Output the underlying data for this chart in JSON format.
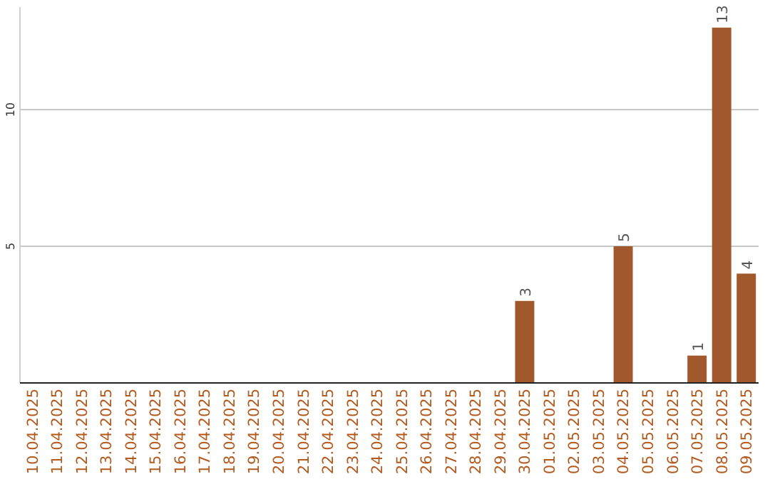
{
  "chart_data": {
    "type": "bar",
    "categories": [
      "10.04.2025",
      "11.04.2025",
      "12.04.2025",
      "13.04.2025",
      "14.04.2025",
      "15.04.2025",
      "16.04.2025",
      "17.04.2025",
      "18.04.2025",
      "19.04.2025",
      "20.04.2025",
      "21.04.2025",
      "22.04.2025",
      "23.04.2025",
      "24.04.2025",
      "25.04.2025",
      "26.04.2025",
      "27.04.2025",
      "28.04.2025",
      "29.04.2025",
      "30.04.2025",
      "01.05.2025",
      "02.05.2025",
      "03.05.2025",
      "04.05.2025",
      "05.05.2025",
      "06.05.2025",
      "07.05.2025",
      "08.05.2025",
      "09.05.2025"
    ],
    "values": [
      0,
      0,
      0,
      0,
      0,
      0,
      0,
      0,
      0,
      0,
      0,
      0,
      0,
      0,
      0,
      0,
      0,
      0,
      0,
      0,
      3,
      0,
      0,
      0,
      5,
      0,
      0,
      1,
      13,
      4
    ],
    "value_labels": [
      null,
      null,
      null,
      null,
      null,
      null,
      null,
      null,
      null,
      null,
      null,
      null,
      null,
      null,
      null,
      null,
      null,
      null,
      null,
      null,
      "3",
      null,
      null,
      null,
      "5",
      null,
      null,
      "1",
      "13",
      "4"
    ],
    "color": "#a0582c",
    "ylim": [
      0,
      13.75
    ],
    "yticks": [
      5,
      10
    ],
    "grid": "y"
  }
}
